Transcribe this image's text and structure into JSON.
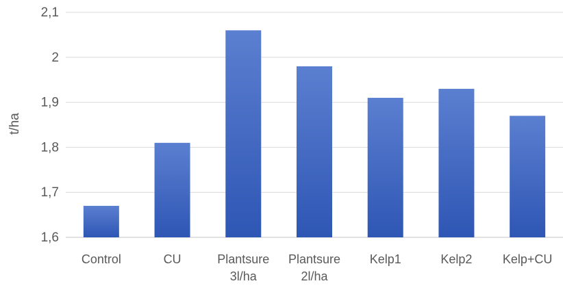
{
  "chart_data": {
    "type": "bar",
    "title": "",
    "xlabel": "",
    "ylabel": "t/ha",
    "ylim": [
      1.6,
      2.1
    ],
    "yticks": [
      "1,6",
      "1,7",
      "1,8",
      "1,9",
      "2",
      "2,1"
    ],
    "ytick_values": [
      1.6,
      1.7,
      1.8,
      1.9,
      2.0,
      2.1
    ],
    "categories": [
      [
        "Control"
      ],
      [
        "CU"
      ],
      [
        "Plantsure",
        "3l/ha"
      ],
      [
        "Plantsure",
        "2l/ha"
      ],
      [
        "Kelp1"
      ],
      [
        "Kelp2"
      ],
      [
        "Kelp+CU"
      ]
    ],
    "values": [
      1.67,
      1.81,
      2.06,
      1.98,
      1.91,
      1.93,
      1.87
    ],
    "grid": true,
    "legend": "none",
    "colors": {
      "bar_top": "#5b7fd0",
      "bar_bottom": "#2e56b4",
      "grid": "#d9d9d9",
      "text": "#595959"
    }
  }
}
